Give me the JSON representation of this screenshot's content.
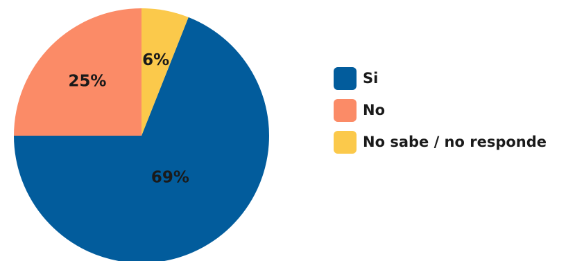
{
  "chart_data": {
    "type": "pie",
    "categories": [
      "Si",
      "No",
      "No sabe / no responde"
    ],
    "values": [
      69,
      25,
      6
    ],
    "data_labels": [
      "69%",
      "25%",
      "6%"
    ],
    "colors": [
      "#025c9c",
      "#fb8b67",
      "#fbc94b"
    ],
    "title": "",
    "legend_position": "right",
    "start_angle": "top",
    "direction": "counter-clockwise"
  }
}
